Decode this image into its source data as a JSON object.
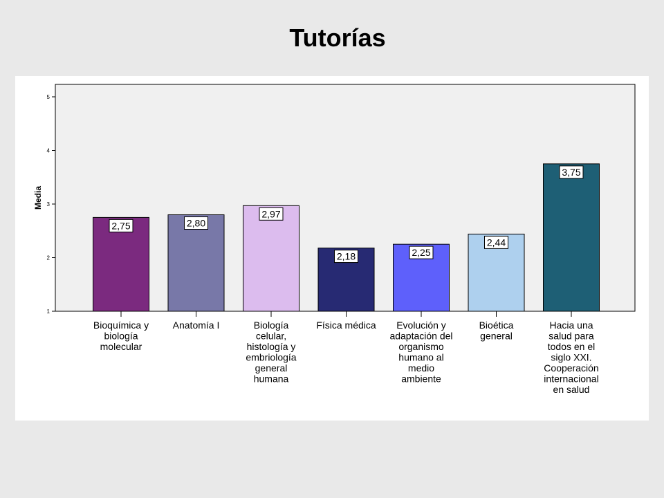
{
  "slide": {
    "title": "Tutorías"
  },
  "chart_data": {
    "type": "bar",
    "title": "",
    "xlabel": "",
    "ylabel": "Media",
    "ylim": [
      1,
      5
    ],
    "yticks": [
      1,
      2,
      3,
      4,
      5
    ],
    "grid": false,
    "categories": [
      "Bioquímica y biología molecular",
      "Anatomía I",
      "Biología celular, histología y embriología general humana",
      "Física médica",
      "Evolución y adaptación del organismo humano al medio ambiente",
      "Bioética general",
      "Hacia una salud para todos en el siglo XXI. Cooperación internacional en salud"
    ],
    "category_lines": [
      [
        "Bioquímica y",
        "biología",
        "molecular"
      ],
      [
        "Anatomía I"
      ],
      [
        "Biología",
        "celular,",
        "histología y",
        "embriología",
        "general",
        "humana"
      ],
      [
        "Física médica"
      ],
      [
        "Evolución y",
        "adaptación del",
        "organismo",
        "humano al",
        "medio",
        "ambiente"
      ],
      [
        "Bioética",
        "general"
      ],
      [
        "Hacia una",
        "salud para",
        "todos en el",
        "siglo XXI.",
        "Cooperación",
        "internacional",
        "en salud"
      ]
    ],
    "values": [
      2.75,
      2.8,
      2.97,
      2.18,
      2.25,
      2.44,
      3.75
    ],
    "value_labels": [
      "2,75",
      "2,80",
      "2,97",
      "2,18",
      "2,25",
      "2,44",
      "3,75"
    ],
    "colors": [
      "#7b2a7f",
      "#7878a8",
      "#dcbcee",
      "#272a73",
      "#5e60fb",
      "#aed0ee",
      "#1e5f75"
    ],
    "plot_background": "#f0f0f0"
  }
}
